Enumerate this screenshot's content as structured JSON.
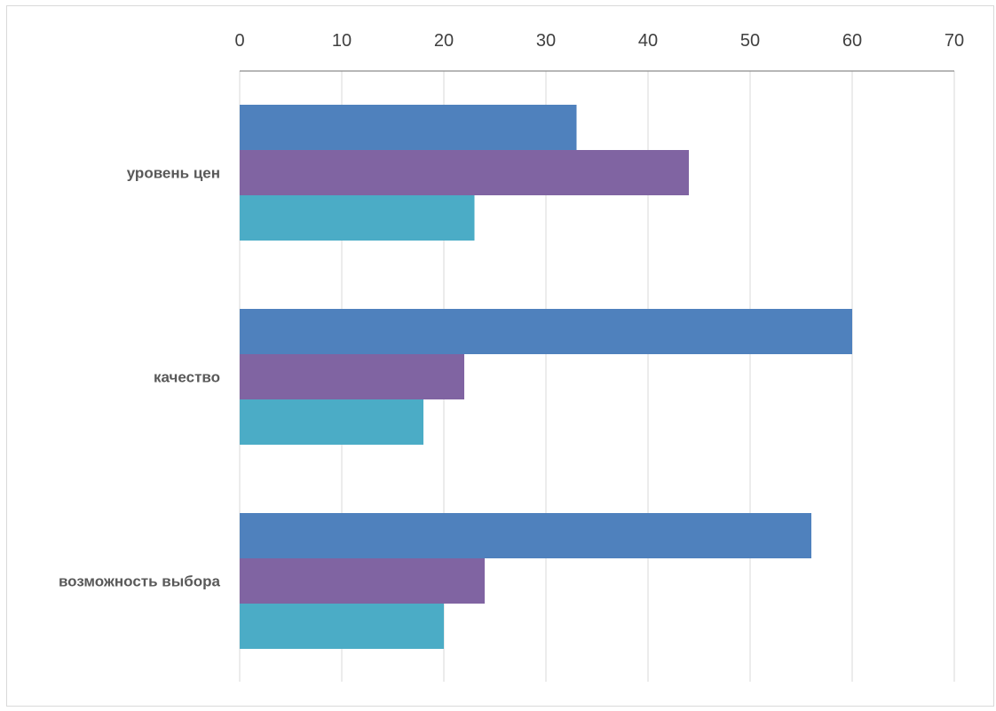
{
  "chart_data": {
    "type": "bar",
    "orientation": "horizontal",
    "title": "",
    "xlabel": "",
    "ylabel": "",
    "categories": [
      "уровень цен",
      "качество",
      "возможность выбора"
    ],
    "series": [
      {
        "values": [
          33,
          60,
          56
        ],
        "color": "#4f81bd"
      },
      {
        "values": [
          44,
          22,
          24
        ],
        "color": "#8064a2"
      },
      {
        "values": [
          23,
          18,
          20
        ],
        "color": "#4bacc6"
      }
    ],
    "xlim": [
      0,
      70
    ],
    "x_ticks": [
      0,
      10,
      20,
      30,
      40,
      50,
      60,
      70
    ],
    "x_axis_position": "top",
    "grid": true,
    "legend": "none"
  }
}
